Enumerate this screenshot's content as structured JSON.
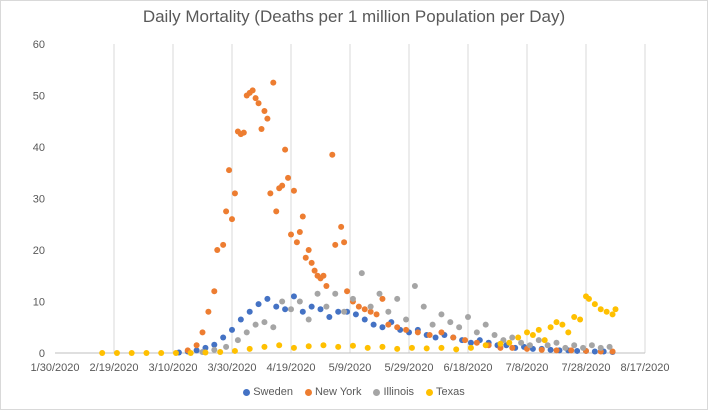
{
  "chart_data": {
    "type": "scatter",
    "title": "Daily Mortality (Deaths per 1 million Population per Day)",
    "xlabel": "",
    "ylabel": "",
    "ylim": [
      0,
      60
    ],
    "xlim": [
      "2020-01-30",
      "2020-08-17"
    ],
    "yticks": [
      "0",
      "10",
      "20",
      "30",
      "40",
      "50",
      "60"
    ],
    "xticks": [
      "1/30/2020",
      "2/19/2020",
      "3/10/2020",
      "3/30/2020",
      "4/19/2020",
      "5/9/2020",
      "5/29/2020",
      "6/18/2020",
      "7/8/2020",
      "7/28/2020",
      "8/17/2020"
    ],
    "grid": "vertical",
    "legend_position": "bottom",
    "series": [
      {
        "name": "Sweden",
        "color": "#4472c4",
        "points": [
          [
            "2020-03-12",
            0.1
          ],
          [
            "2020-03-15",
            0.3
          ],
          [
            "2020-03-18",
            0.5
          ],
          [
            "2020-03-21",
            1.0
          ],
          [
            "2020-03-24",
            1.6
          ],
          [
            "2020-03-27",
            3.0
          ],
          [
            "2020-03-30",
            4.5
          ],
          [
            "2020-04-02",
            6.5
          ],
          [
            "2020-04-05",
            8.0
          ],
          [
            "2020-04-08",
            9.5
          ],
          [
            "2020-04-11",
            10.5
          ],
          [
            "2020-04-14",
            9.0
          ],
          [
            "2020-04-17",
            8.5
          ],
          [
            "2020-04-20",
            11.0
          ],
          [
            "2020-04-23",
            8.0
          ],
          [
            "2020-04-26",
            9.0
          ],
          [
            "2020-04-29",
            8.5
          ],
          [
            "2020-05-02",
            7.0
          ],
          [
            "2020-05-05",
            8.0
          ],
          [
            "2020-05-08",
            8.0
          ],
          [
            "2020-05-11",
            7.5
          ],
          [
            "2020-05-14",
            6.5
          ],
          [
            "2020-05-17",
            5.5
          ],
          [
            "2020-05-20",
            5.0
          ],
          [
            "2020-05-23",
            6.0
          ],
          [
            "2020-05-26",
            4.5
          ],
          [
            "2020-05-29",
            4.0
          ],
          [
            "2020-06-01",
            4.5
          ],
          [
            "2020-06-04",
            3.5
          ],
          [
            "2020-06-07",
            3.0
          ],
          [
            "2020-06-10",
            3.5
          ],
          [
            "2020-06-13",
            3.0
          ],
          [
            "2020-06-16",
            2.5
          ],
          [
            "2020-06-19",
            2.0
          ],
          [
            "2020-06-22",
            2.5
          ],
          [
            "2020-06-25",
            2.0
          ],
          [
            "2020-06-28",
            1.5
          ],
          [
            "2020-07-01",
            1.5
          ],
          [
            "2020-07-04",
            1.0
          ],
          [
            "2020-07-07",
            1.2
          ],
          [
            "2020-07-10",
            0.8
          ],
          [
            "2020-07-13",
            0.8
          ],
          [
            "2020-07-16",
            0.6
          ],
          [
            "2020-07-19",
            0.5
          ],
          [
            "2020-07-22",
            0.5
          ],
          [
            "2020-07-25",
            0.4
          ],
          [
            "2020-07-28",
            0.4
          ],
          [
            "2020-07-31",
            0.3
          ],
          [
            "2020-08-03",
            0.3
          ],
          [
            "2020-08-06",
            0.2
          ]
        ]
      },
      {
        "name": "New York",
        "color": "#ed7d31",
        "points": [
          [
            "2020-03-15",
            0.5
          ],
          [
            "2020-03-18",
            1.5
          ],
          [
            "2020-03-20",
            4.0
          ],
          [
            "2020-03-22",
            8.0
          ],
          [
            "2020-03-24",
            12.0
          ],
          [
            "2020-03-25",
            20.0
          ],
          [
            "2020-03-27",
            21.0
          ],
          [
            "2020-03-28",
            27.5
          ],
          [
            "2020-03-29",
            35.5
          ],
          [
            "2020-03-30",
            26.0
          ],
          [
            "2020-03-31",
            31.0
          ],
          [
            "2020-04-01",
            43.0
          ],
          [
            "2020-04-02",
            42.5
          ],
          [
            "2020-04-03",
            42.8
          ],
          [
            "2020-04-04",
            50.0
          ],
          [
            "2020-04-05",
            50.5
          ],
          [
            "2020-04-06",
            51.0
          ],
          [
            "2020-04-07",
            49.5
          ],
          [
            "2020-04-08",
            48.5
          ],
          [
            "2020-04-09",
            43.5
          ],
          [
            "2020-04-10",
            47.0
          ],
          [
            "2020-04-11",
            45.5
          ],
          [
            "2020-04-12",
            31.0
          ],
          [
            "2020-04-13",
            52.5
          ],
          [
            "2020-04-14",
            27.5
          ],
          [
            "2020-04-15",
            32.0
          ],
          [
            "2020-04-16",
            32.5
          ],
          [
            "2020-04-17",
            39.5
          ],
          [
            "2020-04-18",
            34.0
          ],
          [
            "2020-04-19",
            23.0
          ],
          [
            "2020-04-20",
            31.5
          ],
          [
            "2020-04-21",
            21.5
          ],
          [
            "2020-04-22",
            23.5
          ],
          [
            "2020-04-23",
            26.5
          ],
          [
            "2020-04-24",
            18.5
          ],
          [
            "2020-04-25",
            20.0
          ],
          [
            "2020-04-26",
            17.5
          ],
          [
            "2020-04-27",
            16.0
          ],
          [
            "2020-04-28",
            15.0
          ],
          [
            "2020-04-29",
            14.5
          ],
          [
            "2020-04-30",
            15.0
          ],
          [
            "2020-05-01",
            13.0
          ],
          [
            "2020-05-03",
            38.5
          ],
          [
            "2020-05-04",
            21.0
          ],
          [
            "2020-05-06",
            24.5
          ],
          [
            "2020-05-07",
            21.5
          ],
          [
            "2020-05-08",
            12.0
          ],
          [
            "2020-05-10",
            10.0
          ],
          [
            "2020-05-12",
            9.0
          ],
          [
            "2020-05-14",
            8.5
          ],
          [
            "2020-05-16",
            8.0
          ],
          [
            "2020-05-18",
            7.5
          ],
          [
            "2020-05-20",
            10.5
          ],
          [
            "2020-05-22",
            5.5
          ],
          [
            "2020-05-25",
            5.0
          ],
          [
            "2020-05-28",
            4.5
          ],
          [
            "2020-06-01",
            4.0
          ],
          [
            "2020-06-05",
            3.5
          ],
          [
            "2020-06-09",
            4.0
          ],
          [
            "2020-06-13",
            3.0
          ],
          [
            "2020-06-17",
            2.5
          ],
          [
            "2020-06-21",
            2.0
          ],
          [
            "2020-06-25",
            1.5
          ],
          [
            "2020-06-29",
            1.0
          ],
          [
            "2020-07-03",
            1.0
          ],
          [
            "2020-07-08",
            0.8
          ],
          [
            "2020-07-13",
            0.6
          ],
          [
            "2020-07-18",
            0.5
          ],
          [
            "2020-07-23",
            0.5
          ],
          [
            "2020-07-28",
            0.4
          ],
          [
            "2020-08-02",
            0.3
          ],
          [
            "2020-08-06",
            0.3
          ]
        ]
      },
      {
        "name": "Illinois",
        "color": "#a5a5a5",
        "points": [
          [
            "2020-03-20",
            0.2
          ],
          [
            "2020-03-24",
            0.6
          ],
          [
            "2020-03-28",
            1.2
          ],
          [
            "2020-04-01",
            2.5
          ],
          [
            "2020-04-04",
            4.0
          ],
          [
            "2020-04-07",
            5.5
          ],
          [
            "2020-04-10",
            6.0
          ],
          [
            "2020-04-13",
            5.0
          ],
          [
            "2020-04-16",
            10.0
          ],
          [
            "2020-04-19",
            8.5
          ],
          [
            "2020-04-22",
            10.0
          ],
          [
            "2020-04-25",
            6.5
          ],
          [
            "2020-04-28",
            11.5
          ],
          [
            "2020-05-01",
            9.0
          ],
          [
            "2020-05-04",
            11.5
          ],
          [
            "2020-05-07",
            8.0
          ],
          [
            "2020-05-10",
            10.5
          ],
          [
            "2020-05-13",
            15.5
          ],
          [
            "2020-05-16",
            9.0
          ],
          [
            "2020-05-19",
            11.5
          ],
          [
            "2020-05-22",
            8.0
          ],
          [
            "2020-05-25",
            10.5
          ],
          [
            "2020-05-28",
            6.5
          ],
          [
            "2020-05-31",
            13.0
          ],
          [
            "2020-06-03",
            9.0
          ],
          [
            "2020-06-06",
            5.5
          ],
          [
            "2020-06-09",
            7.5
          ],
          [
            "2020-06-12",
            6.0
          ],
          [
            "2020-06-15",
            5.0
          ],
          [
            "2020-06-18",
            7.0
          ],
          [
            "2020-06-21",
            4.0
          ],
          [
            "2020-06-24",
            5.5
          ],
          [
            "2020-06-27",
            3.5
          ],
          [
            "2020-06-30",
            2.5
          ],
          [
            "2020-07-03",
            3.0
          ],
          [
            "2020-07-06",
            2.0
          ],
          [
            "2020-07-09",
            1.5
          ],
          [
            "2020-07-12",
            2.5
          ],
          [
            "2020-07-15",
            1.5
          ],
          [
            "2020-07-18",
            2.0
          ],
          [
            "2020-07-21",
            1.0
          ],
          [
            "2020-07-24",
            1.5
          ],
          [
            "2020-07-27",
            1.0
          ],
          [
            "2020-07-30",
            1.5
          ],
          [
            "2020-08-02",
            1.0
          ],
          [
            "2020-08-05",
            1.2
          ]
        ]
      },
      {
        "name": "Texas",
        "color": "#ffc000",
        "points": [
          [
            "2020-02-15",
            0.0
          ],
          [
            "2020-02-20",
            0.0
          ],
          [
            "2020-02-25",
            0.0
          ],
          [
            "2020-03-01",
            0.0
          ],
          [
            "2020-03-06",
            0.0
          ],
          [
            "2020-03-11",
            0.0
          ],
          [
            "2020-03-16",
            0.0
          ],
          [
            "2020-03-21",
            0.1
          ],
          [
            "2020-03-26",
            0.2
          ],
          [
            "2020-03-31",
            0.4
          ],
          [
            "2020-04-05",
            0.8
          ],
          [
            "2020-04-10",
            1.2
          ],
          [
            "2020-04-15",
            1.5
          ],
          [
            "2020-04-20",
            1.0
          ],
          [
            "2020-04-25",
            1.3
          ],
          [
            "2020-04-30",
            1.5
          ],
          [
            "2020-05-05",
            1.2
          ],
          [
            "2020-05-10",
            1.4
          ],
          [
            "2020-05-15",
            1.0
          ],
          [
            "2020-05-20",
            1.2
          ],
          [
            "2020-05-25",
            0.8
          ],
          [
            "2020-05-30",
            1.0
          ],
          [
            "2020-06-04",
            0.9
          ],
          [
            "2020-06-09",
            1.0
          ],
          [
            "2020-06-14",
            0.7
          ],
          [
            "2020-06-19",
            1.0
          ],
          [
            "2020-06-24",
            1.5
          ],
          [
            "2020-06-29",
            1.8
          ],
          [
            "2020-07-02",
            2.0
          ],
          [
            "2020-07-05",
            3.0
          ],
          [
            "2020-07-08",
            4.0
          ],
          [
            "2020-07-10",
            3.5
          ],
          [
            "2020-07-12",
            4.5
          ],
          [
            "2020-07-14",
            2.5
          ],
          [
            "2020-07-16",
            5.0
          ],
          [
            "2020-07-18",
            6.0
          ],
          [
            "2020-07-20",
            5.5
          ],
          [
            "2020-07-22",
            4.0
          ],
          [
            "2020-07-24",
            7.0
          ],
          [
            "2020-07-26",
            6.5
          ],
          [
            "2020-07-28",
            11.0
          ],
          [
            "2020-07-29",
            10.5
          ],
          [
            "2020-07-31",
            9.5
          ],
          [
            "2020-08-02",
            8.5
          ],
          [
            "2020-08-04",
            8.0
          ],
          [
            "2020-08-06",
            7.5
          ],
          [
            "2020-08-07",
            8.5
          ]
        ]
      }
    ]
  }
}
